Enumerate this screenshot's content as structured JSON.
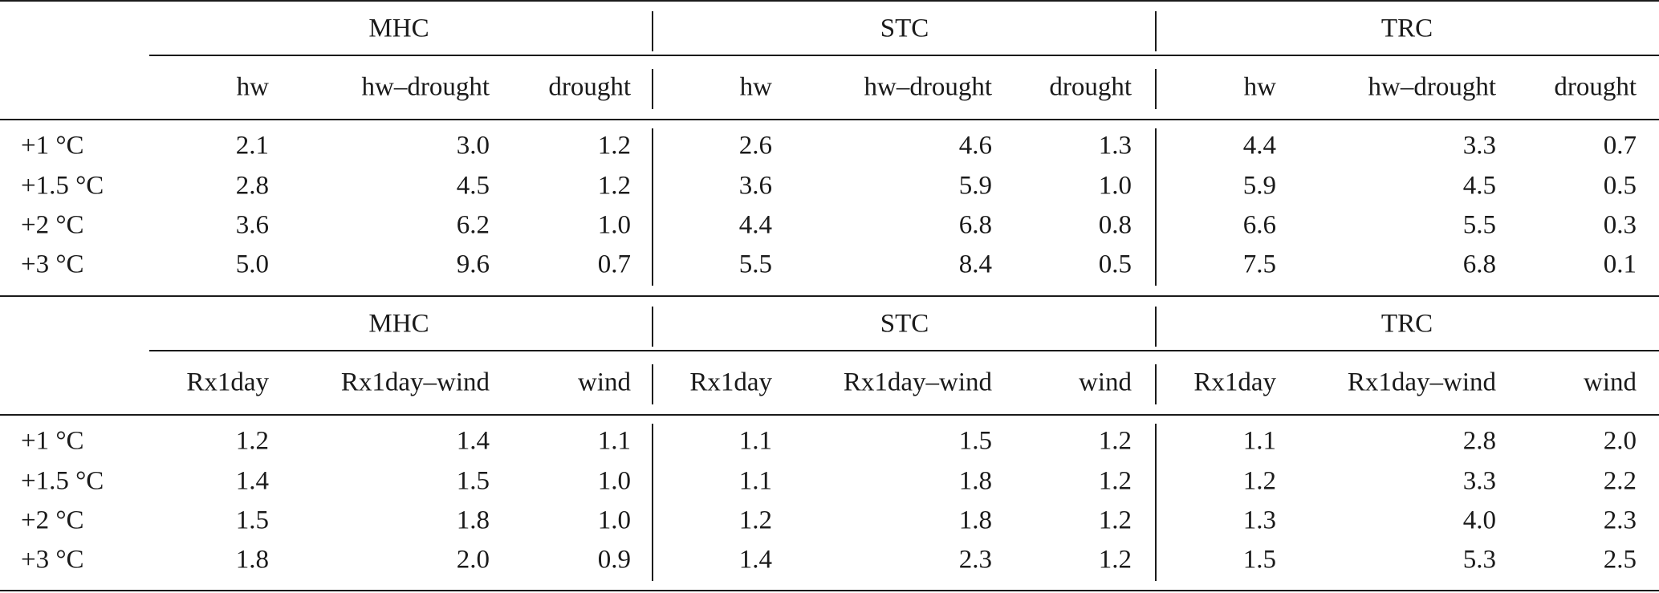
{
  "panels": [
    {
      "groups": [
        "MHC",
        "STC",
        "TRC"
      ],
      "subheaders": [
        "hw",
        "hw–drought",
        "drought"
      ],
      "rows": [
        {
          "label": "+1 °C",
          "values": [
            "2.1",
            "3.0",
            "1.2",
            "2.6",
            "4.6",
            "1.3",
            "4.4",
            "3.3",
            "0.7"
          ]
        },
        {
          "label": "+1.5 °C",
          "values": [
            "2.8",
            "4.5",
            "1.2",
            "3.6",
            "5.9",
            "1.0",
            "5.9",
            "4.5",
            "0.5"
          ]
        },
        {
          "label": "+2 °C",
          "values": [
            "3.6",
            "6.2",
            "1.0",
            "4.4",
            "6.8",
            "0.8",
            "6.6",
            "5.5",
            "0.3"
          ]
        },
        {
          "label": "+3 °C",
          "values": [
            "5.0",
            "9.6",
            "0.7",
            "5.5",
            "8.4",
            "0.5",
            "7.5",
            "6.8",
            "0.1"
          ]
        }
      ]
    },
    {
      "groups": [
        "MHC",
        "STC",
        "TRC"
      ],
      "subheaders": [
        "Rx1day",
        "Rx1day–wind",
        "wind"
      ],
      "rows": [
        {
          "label": "+1 °C",
          "values": [
            "1.2",
            "1.4",
            "1.1",
            "1.1",
            "1.5",
            "1.2",
            "1.1",
            "2.8",
            "2.0"
          ]
        },
        {
          "label": "+1.5 °C",
          "values": [
            "1.4",
            "1.5",
            "1.0",
            "1.1",
            "1.8",
            "1.2",
            "1.2",
            "3.3",
            "2.2"
          ]
        },
        {
          "label": "+2 °C",
          "values": [
            "1.5",
            "1.8",
            "1.0",
            "1.2",
            "1.8",
            "1.2",
            "1.3",
            "4.0",
            "2.3"
          ]
        },
        {
          "label": "+3 °C",
          "values": [
            "1.8",
            "2.0",
            "0.9",
            "1.4",
            "2.3",
            "1.2",
            "1.5",
            "5.3",
            "2.5"
          ]
        }
      ]
    }
  ]
}
